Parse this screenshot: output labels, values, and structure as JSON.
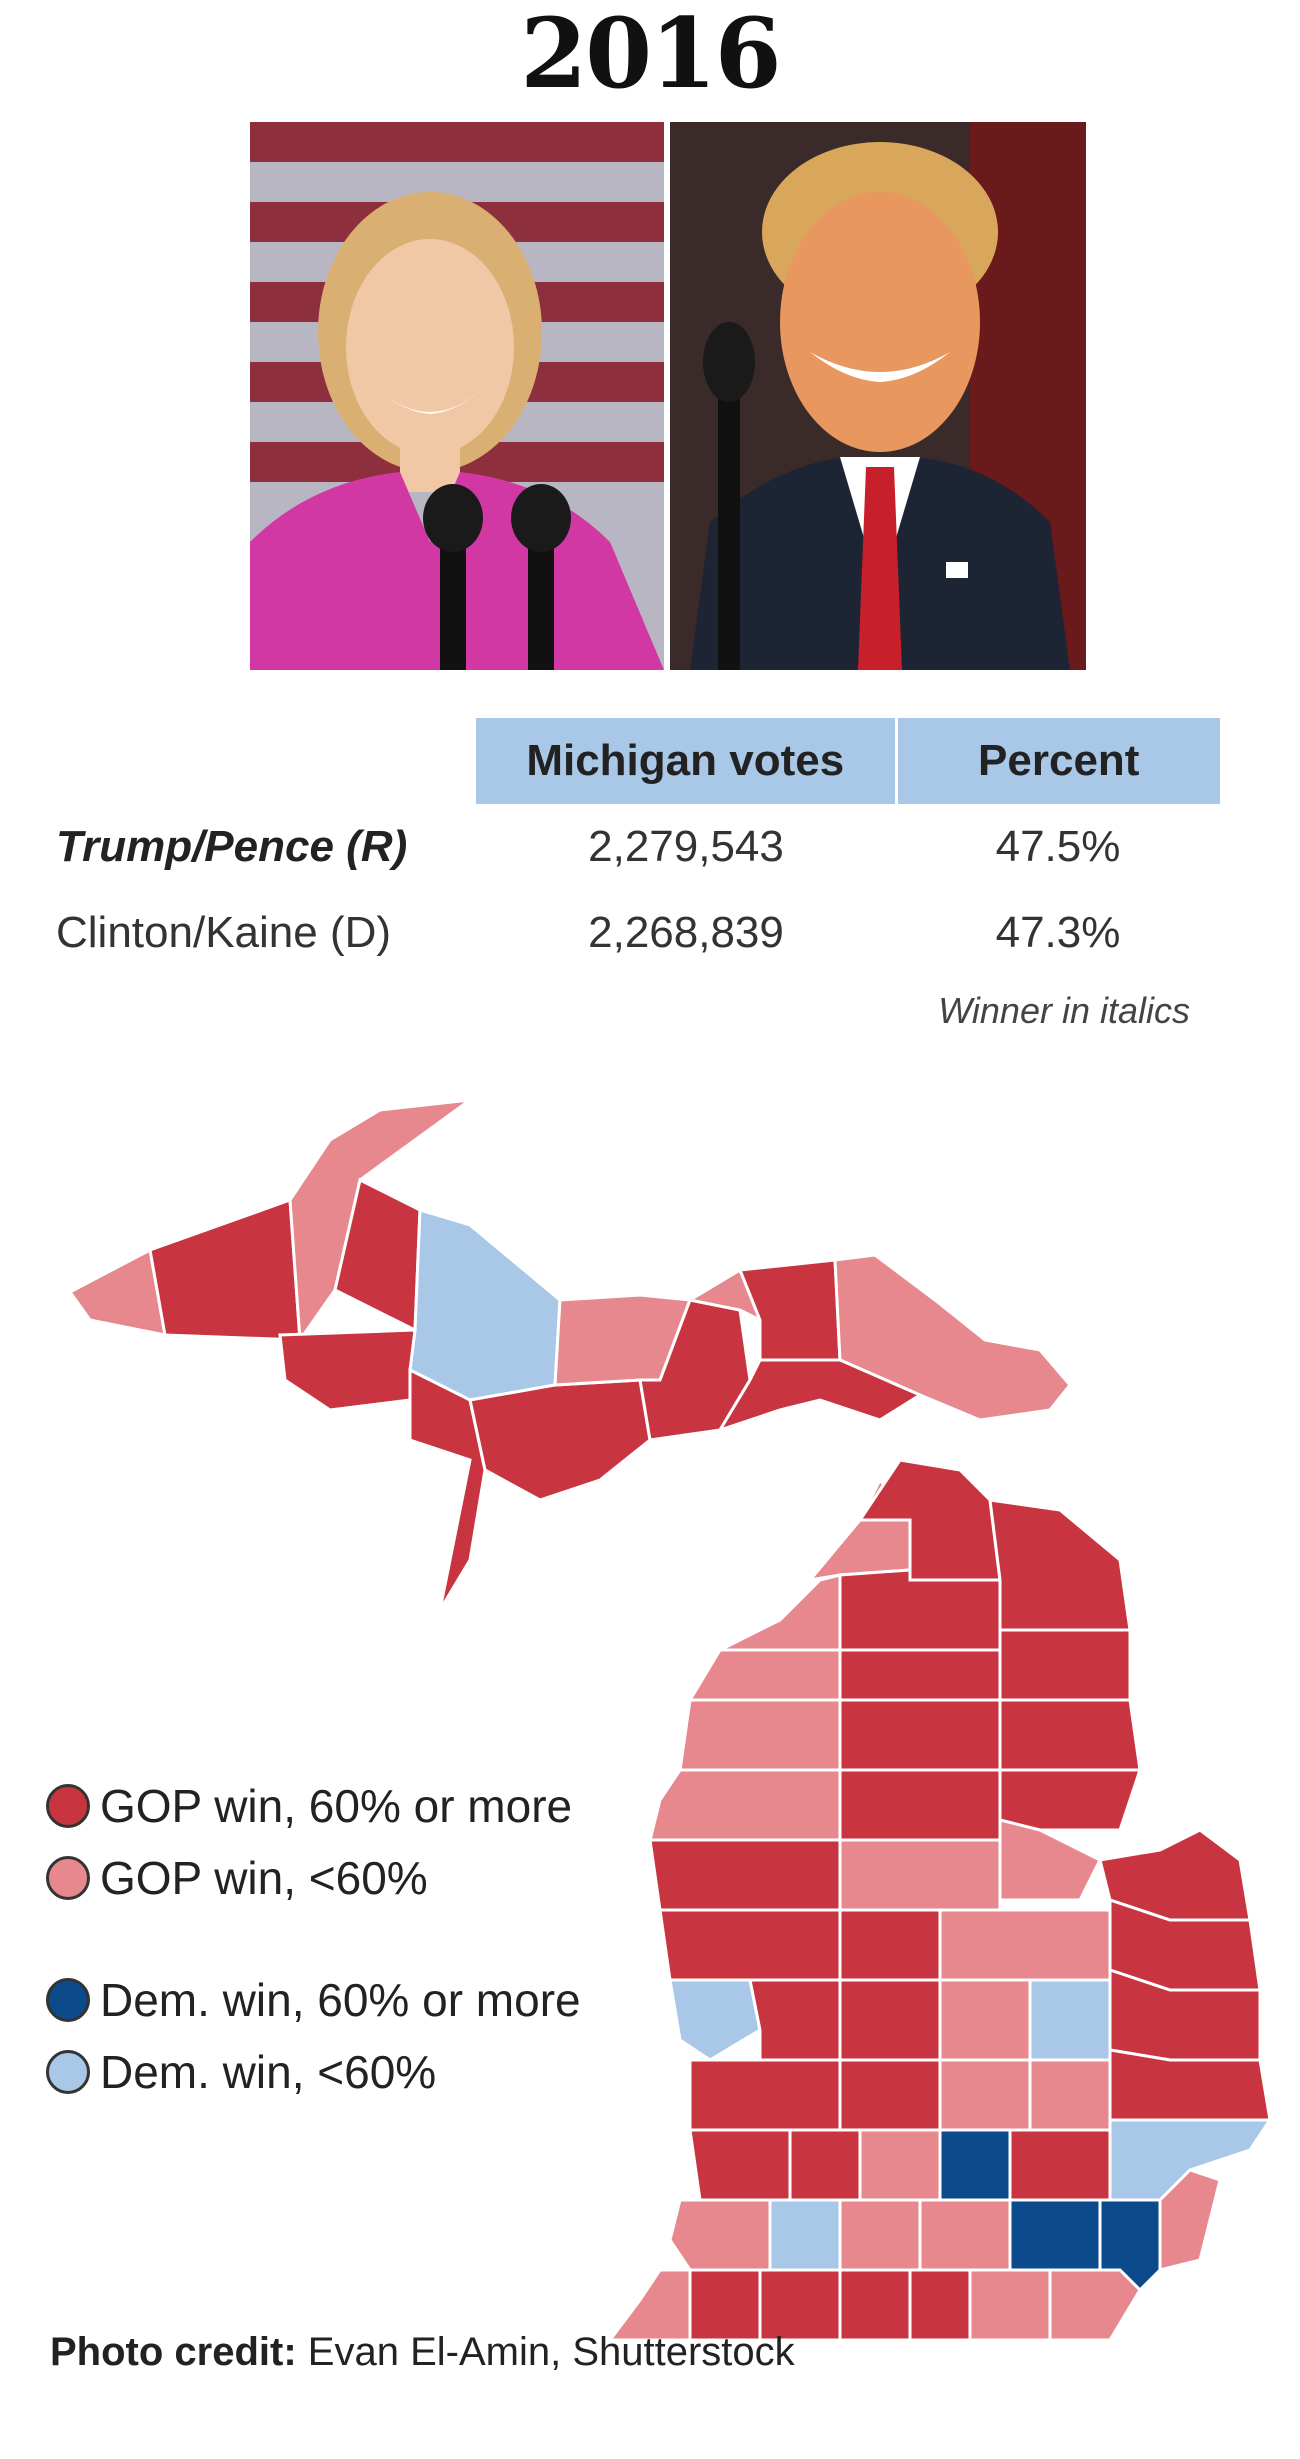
{
  "title": "2016",
  "photos": [
    {
      "subject": "Hillary Clinton",
      "background": "american-flag"
    },
    {
      "subject": "Donald Trump",
      "background": "dark-red"
    }
  ],
  "table": {
    "headers": [
      "",
      "Michigan votes",
      "Percent"
    ],
    "rows": [
      {
        "name": "Trump/Pence (R)",
        "votes": "2,279,543",
        "percent": "47.5%",
        "winner": true
      },
      {
        "name": "Clinton/Kaine (D)",
        "votes": "2,268,839",
        "percent": "47.3%",
        "winner": false
      }
    ],
    "note": "Winner in italics"
  },
  "colors": {
    "gop_strong": "#c8343f",
    "gop_lean": "#e6888e",
    "dem_strong": "#0c4a8c",
    "dem_lean": "#a9c8e8",
    "header_bg": "#a9c8e8"
  },
  "legend": [
    {
      "label": "GOP win, 60% or more",
      "category": "gop_strong"
    },
    {
      "label": "GOP win, <60%",
      "category": "gop_lean"
    },
    {
      "label": "Dem. win, 60% or more",
      "category": "dem_strong"
    },
    {
      "label": "Dem. win, <60%",
      "category": "dem_lean"
    }
  ],
  "credit": {
    "label": "Photo credit:",
    "text": "Evan El-Amin, Shutterstock"
  }
}
